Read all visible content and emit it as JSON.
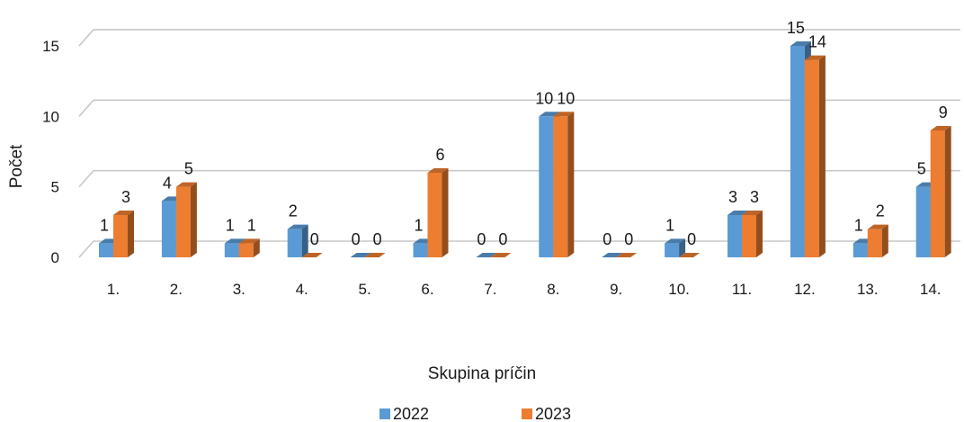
{
  "chart_data": {
    "type": "bar",
    "style": "3d-clustered-column",
    "xlabel": "Skupina príčin",
    "ylabel": "Počet",
    "categories": [
      "1.",
      "2.",
      "3.",
      "4.",
      "5.",
      "6.",
      "7.",
      "8.",
      "9.",
      "10.",
      "11.",
      "12.",
      "13.",
      "14."
    ],
    "series": [
      {
        "name": "2022",
        "color": "#5b9bd5",
        "values": [
          1,
          4,
          1,
          2,
          0,
          1,
          0,
          10,
          0,
          1,
          3,
          15,
          1,
          5
        ]
      },
      {
        "name": "2023",
        "color": "#ed7d31",
        "values": [
          3,
          5,
          1,
          0,
          0,
          6,
          0,
          10,
          0,
          0,
          3,
          14,
          2,
          9
        ]
      }
    ],
    "yticks": [
      0,
      5,
      10,
      15
    ],
    "ylim": [
      0,
      15
    ],
    "grid": true,
    "legend": "bottom",
    "data_labels": true
  }
}
